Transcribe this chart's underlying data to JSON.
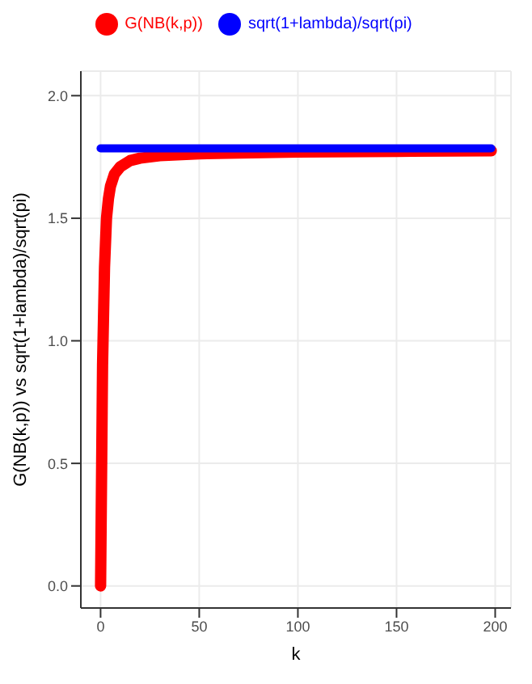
{
  "chart_data": {
    "type": "line",
    "xlabel": "k",
    "ylabel": "G(NB(k,p)) vs sqrt(1+lambda)/sqrt(pi)",
    "xlim": [
      -10,
      208
    ],
    "xticks": [
      0,
      50,
      100,
      150,
      200
    ],
    "ylim": [
      -0.09,
      2.1
    ],
    "yticks": [
      {
        "value": 0,
        "label": "0.0"
      },
      {
        "value": 0.5,
        "label": "0.5"
      },
      {
        "value": 1,
        "label": "1.0"
      },
      {
        "value": 1.5,
        "label": "1.5"
      },
      {
        "value": 2,
        "label": "2.0"
      }
    ],
    "grid": true,
    "legend": "top",
    "marker": "none",
    "line_style": "solid",
    "series": [
      {
        "name": "G(NB(k,p))",
        "color": "#ff0000",
        "x": [
          0,
          1,
          2,
          3,
          4,
          5,
          7,
          10,
          15,
          20,
          30,
          50,
          100,
          150,
          198
        ],
        "values": [
          0,
          0.9,
          1.3,
          1.5,
          1.58,
          1.63,
          1.68,
          1.71,
          1.735,
          1.745,
          1.755,
          1.763,
          1.77,
          1.773,
          1.775
        ]
      },
      {
        "name": "sqrt(1+lambda)/sqrt(pi)",
        "color": "#0000ff",
        "x": [
          0,
          198
        ],
        "values": [
          1.785,
          1.785
        ]
      }
    ]
  }
}
